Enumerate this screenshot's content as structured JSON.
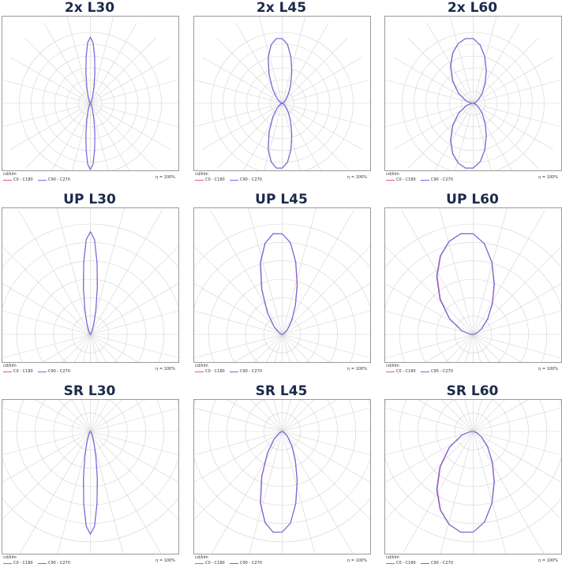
{
  "colors": {
    "c0_c180": "#e05a78",
    "c90_c270": "#6b6be6",
    "title": "#1b2a4a",
    "grid": "#d4d4d4"
  },
  "chart_data": [
    {
      "type": "polar",
      "title": "2x L30",
      "unit": "cd/klm",
      "efficiency": "η = 100%",
      "series": [
        {
          "name": "C0 - C180",
          "values": [
            0.0,
            0.02,
            0.08,
            0.18,
            0.34,
            0.55,
            0.76,
            0.94,
            1.0,
            0.94,
            0.76,
            0.55,
            0.34,
            0.18,
            0.08,
            0.02,
            0.0
          ]
        },
        {
          "name": "C90 - C270",
          "values": [
            0.0,
            0.02,
            0.08,
            0.18,
            0.34,
            0.55,
            0.76,
            0.94,
            1.0,
            0.94,
            0.76,
            0.55,
            0.34,
            0.18,
            0.08,
            0.02,
            0.0
          ]
        }
      ]
    },
    {
      "type": "polar",
      "title": "2x L45",
      "unit": "cd/klm",
      "efficiency": "η = 100%",
      "series": [
        {
          "name": "C0 - C180",
          "values": [
            0.0,
            0.04,
            0.12,
            0.25,
            0.4,
            0.58,
            0.76,
            0.91,
            0.98,
            1.0,
            0.96,
            0.84,
            0.62,
            0.38,
            0.18,
            0.05,
            0.0
          ]
        },
        {
          "name": "C90 - C270",
          "values": [
            0.0,
            0.04,
            0.12,
            0.25,
            0.4,
            0.58,
            0.76,
            0.91,
            0.98,
            1.0,
            0.96,
            0.84,
            0.62,
            0.38,
            0.18,
            0.05,
            0.0
          ]
        }
      ]
    },
    {
      "type": "polar",
      "title": "2x L60",
      "unit": "cd/klm",
      "efficiency": "η = 100%",
      "series": [
        {
          "name": "C0 - C180",
          "values": [
            0.0,
            0.05,
            0.14,
            0.27,
            0.42,
            0.59,
            0.76,
            0.9,
            0.98,
            1.0,
            0.98,
            0.92,
            0.8,
            0.62,
            0.4,
            0.18,
            0.04
          ]
        },
        {
          "name": "C90 - C270",
          "values": [
            0.0,
            0.05,
            0.14,
            0.27,
            0.42,
            0.59,
            0.76,
            0.9,
            0.98,
            1.0,
            0.98,
            0.92,
            0.8,
            0.62,
            0.4,
            0.18,
            0.04
          ]
        }
      ]
    },
    {
      "type": "polar",
      "title": "UP L30",
      "unit": "cd/klm",
      "efficiency": "η = 100%",
      "series": [
        {
          "name": "C0 - C180",
          "values": [
            0.0,
            0.02,
            0.08,
            0.18,
            0.34,
            0.55,
            0.76,
            0.94,
            1.0,
            0.94,
            0.76,
            0.55,
            0.34,
            0.18,
            0.08,
            0.02,
            0.0
          ]
        },
        {
          "name": "C90 - C270",
          "values": [
            0.0,
            0.02,
            0.08,
            0.18,
            0.34,
            0.55,
            0.76,
            0.94,
            1.0,
            0.94,
            0.76,
            0.55,
            0.34,
            0.18,
            0.08,
            0.02,
            0.0
          ]
        }
      ]
    },
    {
      "type": "polar",
      "title": "UP L45",
      "unit": "cd/klm",
      "efficiency": "η = 100%",
      "series": [
        {
          "name": "C0 - C180",
          "values": [
            0.0,
            0.04,
            0.12,
            0.25,
            0.4,
            0.58,
            0.76,
            0.91,
            0.98,
            1.0,
            0.96,
            0.84,
            0.62,
            0.38,
            0.18,
            0.05,
            0.0
          ]
        },
        {
          "name": "C90 - C270",
          "values": [
            0.0,
            0.04,
            0.12,
            0.25,
            0.4,
            0.58,
            0.76,
            0.91,
            0.98,
            1.0,
            0.96,
            0.84,
            0.62,
            0.38,
            0.18,
            0.05,
            0.0
          ]
        }
      ]
    },
    {
      "type": "polar",
      "title": "UP L60",
      "unit": "cd/klm",
      "efficiency": "η = 100%",
      "series": [
        {
          "name": "C0 - C180",
          "values": [
            0.0,
            0.05,
            0.14,
            0.27,
            0.42,
            0.59,
            0.76,
            0.9,
            0.98,
            1.0,
            0.98,
            0.92,
            0.8,
            0.62,
            0.4,
            0.18,
            0.04
          ]
        },
        {
          "name": "C90 - C270",
          "values": [
            0.0,
            0.05,
            0.14,
            0.27,
            0.42,
            0.59,
            0.76,
            0.9,
            0.98,
            1.0,
            0.98,
            0.92,
            0.8,
            0.62,
            0.4,
            0.18,
            0.04
          ]
        }
      ]
    },
    {
      "type": "polar",
      "title": "SR L30",
      "unit": "cd/klm",
      "efficiency": "η = 100%",
      "series": [
        {
          "name": "C0 - C180",
          "values": [
            0.0,
            0.02,
            0.08,
            0.18,
            0.34,
            0.55,
            0.76,
            0.94,
            1.0,
            0.94,
            0.76,
            0.55,
            0.34,
            0.18,
            0.08,
            0.02,
            0.0
          ]
        },
        {
          "name": "C90 - C270",
          "values": [
            0.0,
            0.02,
            0.08,
            0.18,
            0.34,
            0.55,
            0.76,
            0.94,
            1.0,
            0.94,
            0.76,
            0.55,
            0.34,
            0.18,
            0.08,
            0.02,
            0.0
          ]
        }
      ]
    },
    {
      "type": "polar",
      "title": "SR L45",
      "unit": "cd/klm",
      "efficiency": "η = 100%",
      "series": [
        {
          "name": "C0 - C180",
          "values": [
            0.0,
            0.04,
            0.12,
            0.25,
            0.4,
            0.58,
            0.76,
            0.91,
            0.98,
            1.0,
            0.96,
            0.84,
            0.62,
            0.38,
            0.18,
            0.05,
            0.0
          ]
        },
        {
          "name": "C90 - C270",
          "values": [
            0.0,
            0.04,
            0.12,
            0.25,
            0.4,
            0.58,
            0.76,
            0.91,
            0.98,
            1.0,
            0.96,
            0.84,
            0.62,
            0.38,
            0.18,
            0.05,
            0.0
          ]
        }
      ]
    },
    {
      "type": "polar",
      "title": "SR L60",
      "unit": "cd/klm",
      "efficiency": "η = 100%",
      "series": [
        {
          "name": "C0 - C180",
          "values": [
            0.0,
            0.05,
            0.14,
            0.27,
            0.42,
            0.59,
            0.76,
            0.9,
            0.98,
            1.0,
            0.98,
            0.92,
            0.8,
            0.62,
            0.4,
            0.18,
            0.04
          ]
        },
        {
          "name": "C90 - C270",
          "values": [
            0.0,
            0.05,
            0.14,
            0.27,
            0.42,
            0.59,
            0.76,
            0.9,
            0.98,
            1.0,
            0.98,
            0.92,
            0.8,
            0.62,
            0.4,
            0.18,
            0.04
          ]
        }
      ]
    }
  ]
}
